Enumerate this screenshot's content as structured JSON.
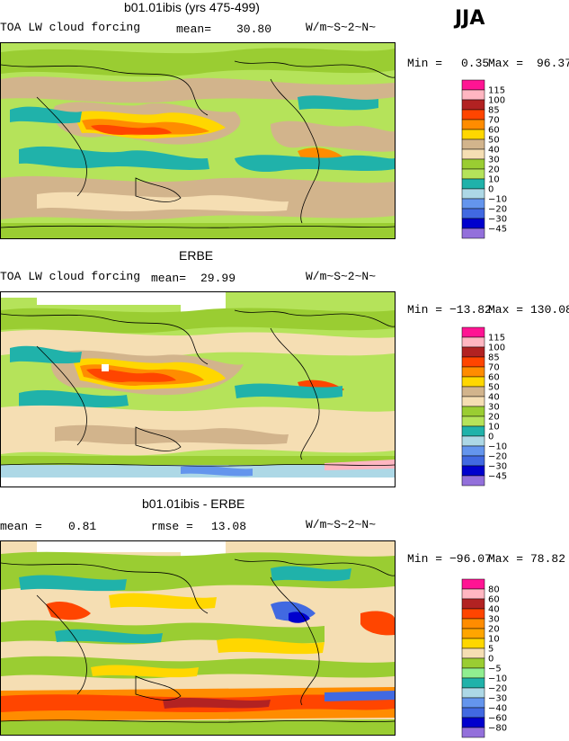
{
  "season": "JJA",
  "panels": [
    {
      "title": "b01.01ibis (yrs 475-499)",
      "left_label": "TOA LW cloud forcing",
      "stat1_label": "mean=",
      "stat1_value": "30.80",
      "units": "W/m~S~2~N~",
      "min_label": "Min =",
      "min_value": "0.35",
      "max_label": "Max =",
      "max_value": "96.37",
      "colorbar": [
        "115",
        "100",
        "85",
        "70",
        "60",
        "50",
        "40",
        "30",
        "20",
        "10",
        "0",
        "−10",
        "−20",
        "−30",
        "−45"
      ]
    },
    {
      "title": "ERBE",
      "left_label": "TOA LW cloud forcing",
      "stat1_label": "mean=",
      "stat1_value": "29.99",
      "units": "W/m~S~2~N~",
      "min_label": "Min =",
      "min_value": "−13.82",
      "max_label": "Max =",
      "max_value": "130.08",
      "colorbar": [
        "115",
        "100",
        "85",
        "70",
        "60",
        "50",
        "40",
        "30",
        "20",
        "10",
        "0",
        "−10",
        "−20",
        "−30",
        "−45"
      ]
    },
    {
      "title": "b01.01ibis - ERBE",
      "left_label": "mean =",
      "stat1_label": "",
      "stat1_value": "0.81",
      "rmse_label": "rmse =",
      "rmse_value": "13.08",
      "units": "W/m~S~2~N~",
      "min_label": "Min =",
      "min_value": "−96.07",
      "max_label": "Max =",
      "max_value": "78.82",
      "colorbar": [
        "80",
        "60",
        "40",
        "30",
        "20",
        "10",
        "5",
        "0",
        "−5",
        "−10",
        "−20",
        "−30",
        "−40",
        "−60",
        "−80"
      ]
    }
  ],
  "colors": {
    "abs_scale": [
      "#ff1493",
      "#ffb6c1",
      "#b22222",
      "#ff4500",
      "#ff8c00",
      "#ffd700",
      "#d2b48c",
      "#f5deb3",
      "#9acd32",
      "#b5e35a",
      "#20b2aa",
      "#add8e6",
      "#6495ed",
      "#4169e1",
      "#0000cd",
      "#9370db"
    ],
    "diff_scale": [
      "#ff1493",
      "#ffb6c1",
      "#b22222",
      "#ff4500",
      "#ff8c00",
      "#ffa500",
      "#ffd700",
      "#f5deb3",
      "#ffffe0",
      "#9acd32",
      "#90ee90",
      "#20b2aa",
      "#add8e6",
      "#6495ed",
      "#4169e1",
      "#0000cd",
      "#9370db"
    ]
  },
  "chart_data": [
    {
      "type": "heatmap",
      "title": "b01.01ibis (yrs 475-499)",
      "variable": "TOA LW cloud forcing",
      "season": "JJA",
      "units": "W/m~S~2~N~",
      "mean": 30.8,
      "min": 0.35,
      "max": 96.37,
      "contour_levels": [
        -45,
        -30,
        -20,
        -10,
        0,
        10,
        20,
        30,
        40,
        50,
        60,
        70,
        85,
        100,
        115
      ]
    },
    {
      "type": "heatmap",
      "title": "ERBE",
      "variable": "TOA LW cloud forcing",
      "season": "JJA",
      "units": "W/m~S~2~N~",
      "mean": 29.99,
      "min": -13.82,
      "max": 130.08,
      "contour_levels": [
        -45,
        -30,
        -20,
        -10,
        0,
        10,
        20,
        30,
        40,
        50,
        60,
        70,
        85,
        100,
        115
      ]
    },
    {
      "type": "heatmap",
      "title": "b01.01ibis - ERBE",
      "season": "JJA",
      "units": "W/m~S~2~N~",
      "mean": 0.81,
      "rmse": 13.08,
      "min": -96.07,
      "max": 78.82,
      "contour_levels": [
        -80,
        -60,
        -40,
        -30,
        -20,
        -10,
        -5,
        0,
        5,
        10,
        20,
        30,
        40,
        60,
        80
      ]
    }
  ]
}
